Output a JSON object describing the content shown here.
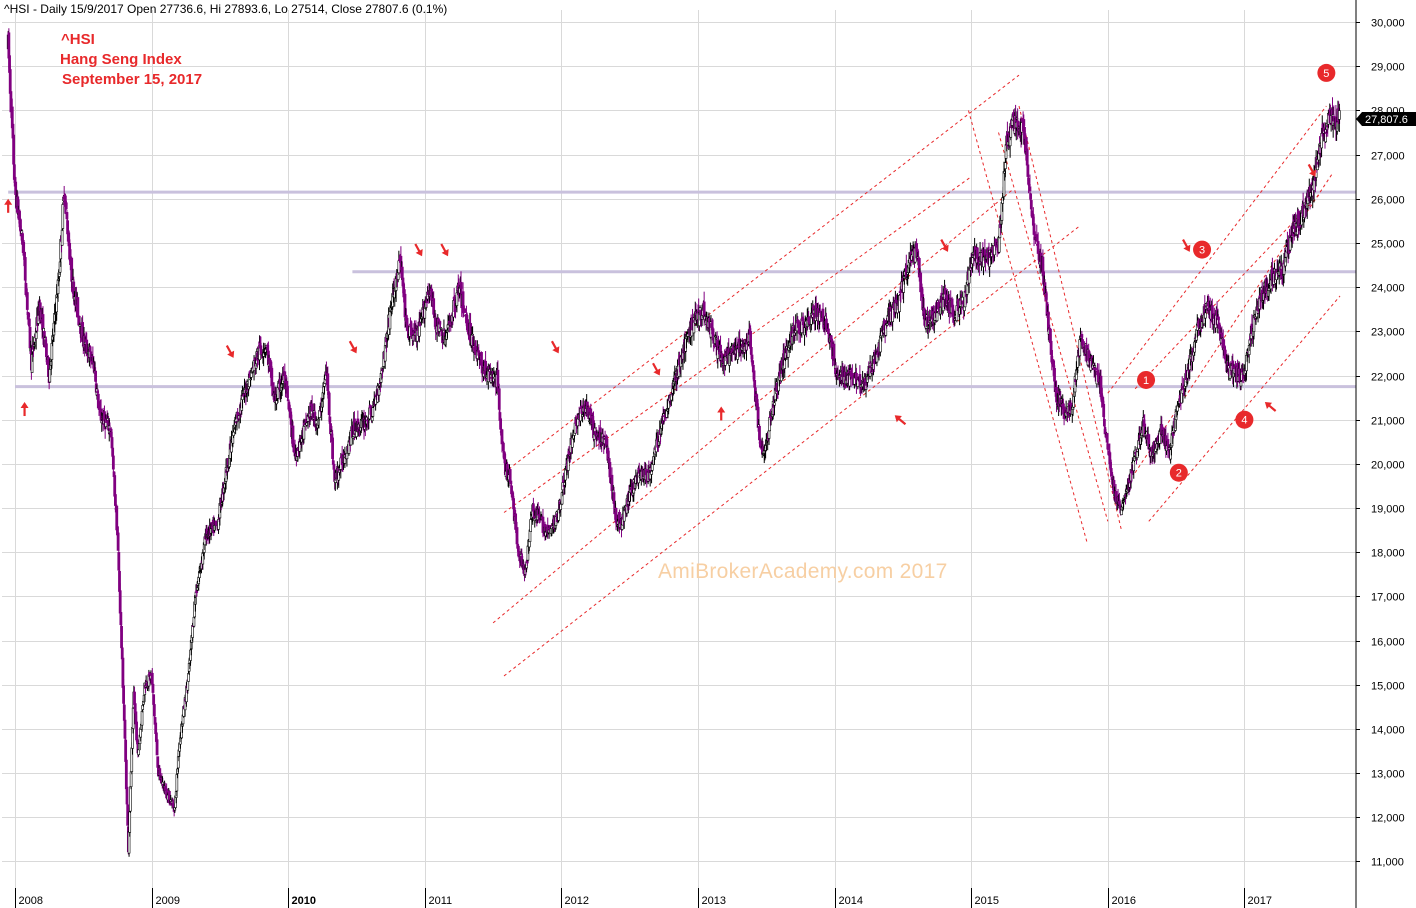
{
  "header": {
    "info_line": "^HSI - Daily 15/9/2017 Open 27736.6, Hi 27893.6, Lo 27514, Close 27807.6 (0.1%)"
  },
  "title_block": {
    "symbol": "^HSI",
    "name": "Hang Seng Index",
    "date": "September 15, 2017"
  },
  "watermark": "AmiBrokerAcademy.com    2017",
  "colors": {
    "candle_purple": "#800080",
    "candle_black": "#000000",
    "annotation_red": "#e8292b",
    "support_line": "#c9c1dd",
    "grid": "#d9d9d9",
    "watermark": "#f7cfa3"
  },
  "chart_data": {
    "type": "candlestick",
    "symbol": "^HSI",
    "periodicity": "Daily",
    "last_bar": {
      "date": "15/9/2017",
      "open": 27736.6,
      "high": 27893.6,
      "low": 27514,
      "close": 27807.6,
      "change": "0.1%"
    },
    "last_close_label": "27,807.6",
    "y_axis": {
      "position": "right",
      "range": [
        10400,
        30500
      ],
      "tick_values": [
        11000,
        12000,
        13000,
        14000,
        15000,
        16000,
        17000,
        18000,
        19000,
        20000,
        21000,
        22000,
        23000,
        24000,
        25000,
        26000,
        27000,
        28000,
        29000,
        30000
      ],
      "tick_labels": [
        "11,000",
        "12,000",
        "13,000",
        "14,000",
        "15,000",
        "16,000",
        "17,000",
        "18,000",
        "19,000",
        "20,000",
        "21,000",
        "22,000",
        "23,000",
        "24,000",
        "25,000",
        "26,000",
        "27,000",
        "28,000",
        "29,000",
        "30,000"
      ]
    },
    "x_axis": {
      "range": [
        2007.95,
        2017.9
      ],
      "years": [
        2008,
        2009,
        2010,
        2011,
        2012,
        2013,
        2014,
        2015,
        2016,
        2017
      ],
      "year_labels": [
        "2008",
        "2009",
        "2010",
        "2011",
        "2012",
        "2013",
        "2014",
        "2015",
        "2016",
        "2017"
      ],
      "bold_labels": [
        "2010"
      ]
    },
    "grid": true,
    "price_path": [
      [
        2007.95,
        29500
      ],
      [
        2008.0,
        26200
      ],
      [
        2008.06,
        24900
      ],
      [
        2008.12,
        22300
      ],
      [
        2008.18,
        23600
      ],
      [
        2008.25,
        22000
      ],
      [
        2008.32,
        24200
      ],
      [
        2008.36,
        26200
      ],
      [
        2008.42,
        24100
      ],
      [
        2008.5,
        22800
      ],
      [
        2008.58,
        22200
      ],
      [
        2008.62,
        21100
      ],
      [
        2008.7,
        20800
      ],
      [
        2008.75,
        18400
      ],
      [
        2008.8,
        14200
      ],
      [
        2008.83,
        11300
      ],
      [
        2008.87,
        14800
      ],
      [
        2008.9,
        13400
      ],
      [
        2008.95,
        15000
      ],
      [
        2009.0,
        15200
      ],
      [
        2009.05,
        13000
      ],
      [
        2009.1,
        12600
      ],
      [
        2009.17,
        12200
      ],
      [
        2009.2,
        13600
      ],
      [
        2009.27,
        15200
      ],
      [
        2009.32,
        17000
      ],
      [
        2009.4,
        18400
      ],
      [
        2009.48,
        18600
      ],
      [
        2009.55,
        19900
      ],
      [
        2009.62,
        21000
      ],
      [
        2009.7,
        21800
      ],
      [
        2009.78,
        22500
      ],
      [
        2009.84,
        22700
      ],
      [
        2009.9,
        21400
      ],
      [
        2009.97,
        22000
      ],
      [
        2010.05,
        20200
      ],
      [
        2010.1,
        20600
      ],
      [
        2010.16,
        21200
      ],
      [
        2010.22,
        20900
      ],
      [
        2010.28,
        22100
      ],
      [
        2010.34,
        19600
      ],
      [
        2010.4,
        20100
      ],
      [
        2010.48,
        20800
      ],
      [
        2010.55,
        20900
      ],
      [
        2010.62,
        21200
      ],
      [
        2010.68,
        22000
      ],
      [
        2010.75,
        23500
      ],
      [
        2010.82,
        24600
      ],
      [
        2010.87,
        23000
      ],
      [
        2010.95,
        22900
      ],
      [
        2011.03,
        24000
      ],
      [
        2011.08,
        23200
      ],
      [
        2011.15,
        22800
      ],
      [
        2011.25,
        24000
      ],
      [
        2011.3,
        23300
      ],
      [
        2011.35,
        22800
      ],
      [
        2011.42,
        22200
      ],
      [
        2011.47,
        22000
      ],
      [
        2011.53,
        21900
      ],
      [
        2011.58,
        20000
      ],
      [
        2011.63,
        19600
      ],
      [
        2011.68,
        18100
      ],
      [
        2011.74,
        17500
      ],
      [
        2011.78,
        19000
      ],
      [
        2011.83,
        18800
      ],
      [
        2011.9,
        18400
      ],
      [
        2011.96,
        18700
      ],
      [
        2012.02,
        19600
      ],
      [
        2012.1,
        20900
      ],
      [
        2012.18,
        21300
      ],
      [
        2012.25,
        20600
      ],
      [
        2012.32,
        20600
      ],
      [
        2012.4,
        18800
      ],
      [
        2012.44,
        18600
      ],
      [
        2012.5,
        19300
      ],
      [
        2012.57,
        19800
      ],
      [
        2012.64,
        19700
      ],
      [
        2012.72,
        20700
      ],
      [
        2012.8,
        21600
      ],
      [
        2012.88,
        22400
      ],
      [
        2012.96,
        23200
      ],
      [
        2013.04,
        23500
      ],
      [
        2013.1,
        23000
      ],
      [
        2013.18,
        22300
      ],
      [
        2013.25,
        22500
      ],
      [
        2013.32,
        22600
      ],
      [
        2013.38,
        22900
      ],
      [
        2013.44,
        20900
      ],
      [
        2013.48,
        20100
      ],
      [
        2013.56,
        21500
      ],
      [
        2013.62,
        22300
      ],
      [
        2013.7,
        23000
      ],
      [
        2013.78,
        23200
      ],
      [
        2013.86,
        23400
      ],
      [
        2013.94,
        23200
      ],
      [
        2014.02,
        22000
      ],
      [
        2014.08,
        21900
      ],
      [
        2014.15,
        22000
      ],
      [
        2014.22,
        21800
      ],
      [
        2014.3,
        22400
      ],
      [
        2014.38,
        23200
      ],
      [
        2014.46,
        23600
      ],
      [
        2014.54,
        24500
      ],
      [
        2014.6,
        24800
      ],
      [
        2014.66,
        23200
      ],
      [
        2014.72,
        23300
      ],
      [
        2014.8,
        23800
      ],
      [
        2014.88,
        23400
      ],
      [
        2014.95,
        23700
      ],
      [
        2015.02,
        24800
      ],
      [
        2015.1,
        24600
      ],
      [
        2015.2,
        24900
      ],
      [
        2015.26,
        27300
      ],
      [
        2015.3,
        27700
      ],
      [
        2015.38,
        27600
      ],
      [
        2015.46,
        25200
      ],
      [
        2015.52,
        24500
      ],
      [
        2015.56,
        23300
      ],
      [
        2015.62,
        21600
      ],
      [
        2015.68,
        21200
      ],
      [
        2015.74,
        21300
      ],
      [
        2015.8,
        22800
      ],
      [
        2015.86,
        22400
      ],
      [
        2015.94,
        21900
      ],
      [
        2016.0,
        20300
      ],
      [
        2016.05,
        19300
      ],
      [
        2016.1,
        18900
      ],
      [
        2016.18,
        19900
      ],
      [
        2016.26,
        20900
      ],
      [
        2016.32,
        20200
      ],
      [
        2016.4,
        20800
      ],
      [
        2016.45,
        20200
      ],
      [
        2016.52,
        21400
      ],
      [
        2016.58,
        22000
      ],
      [
        2016.65,
        23000
      ],
      [
        2016.72,
        23500
      ],
      [
        2016.8,
        23300
      ],
      [
        2016.88,
        22200
      ],
      [
        2016.95,
        22000
      ],
      [
        2017.0,
        22000
      ],
      [
        2017.05,
        23000
      ],
      [
        2017.12,
        23800
      ],
      [
        2017.2,
        24200
      ],
      [
        2017.28,
        24400
      ],
      [
        2017.36,
        25300
      ],
      [
        2017.44,
        25700
      ],
      [
        2017.5,
        26300
      ],
      [
        2017.56,
        27300
      ],
      [
        2017.62,
        27800
      ],
      [
        2017.7,
        27808
      ]
    ],
    "support_lines": [
      {
        "value": 26150,
        "from": 2007.95,
        "to": 2017.9
      },
      {
        "value": 24350,
        "from": 2010.47,
        "to": 2017.9
      },
      {
        "value": 21750,
        "from": 2008.0,
        "to": 2017.9
      }
    ],
    "trend_channels": [
      {
        "from": [
          2011.58,
          19800
        ],
        "to": [
          2015.35,
          28800
        ]
      },
      {
        "from": [
          2011.58,
          18900
        ],
        "to": [
          2015.0,
          26500
        ]
      },
      {
        "from": [
          2011.5,
          16400
        ],
        "to": [
          2015.3,
          26200
        ]
      },
      {
        "from": [
          2011.58,
          15200
        ],
        "to": [
          2015.8,
          25400
        ]
      },
      {
        "from": [
          2014.98,
          28000
        ],
        "to": [
          2015.85,
          18200
        ]
      },
      {
        "from": [
          2015.2,
          27500
        ],
        "to": [
          2016.0,
          18700
        ]
      },
      {
        "from": [
          2015.35,
          28100
        ],
        "to": [
          2016.1,
          18500
        ]
      },
      {
        "from": [
          2016.0,
          21600
        ],
        "to": [
          2017.6,
          28100
        ]
      },
      {
        "from": [
          2016.2,
          19800
        ],
        "to": [
          2017.65,
          26600
        ]
      },
      {
        "from": [
          2016.2,
          21700
        ],
        "to": [
          2017.55,
          26100
        ]
      },
      {
        "from": [
          2016.3,
          18700
        ],
        "to": [
          2017.7,
          23800
        ]
      }
    ],
    "arrows": [
      {
        "x": 2007.95,
        "y": 26000,
        "direction": "up"
      },
      {
        "x": 2008.07,
        "y": 21400,
        "direction": "up"
      },
      {
        "x": 2009.6,
        "y": 22400,
        "direction": "down"
      },
      {
        "x": 2010.5,
        "y": 22500,
        "direction": "down"
      },
      {
        "x": 2010.98,
        "y": 24700,
        "direction": "down"
      },
      {
        "x": 2011.17,
        "y": 24700,
        "direction": "down"
      },
      {
        "x": 2011.98,
        "y": 22500,
        "direction": "down"
      },
      {
        "x": 2012.72,
        "y": 22000,
        "direction": "down"
      },
      {
        "x": 2013.17,
        "y": 21300,
        "direction": "up"
      },
      {
        "x": 2014.44,
        "y": 21100,
        "direction": "up-left"
      },
      {
        "x": 2014.83,
        "y": 24800,
        "direction": "down"
      },
      {
        "x": 2016.6,
        "y": 24800,
        "direction": "down"
      },
      {
        "x": 2017.15,
        "y": 21400,
        "direction": "up-left"
      },
      {
        "x": 2017.52,
        "y": 26500,
        "direction": "down"
      }
    ],
    "wave_labels": [
      {
        "label": "1",
        "x": 2016.28,
        "y": 21900
      },
      {
        "label": "2",
        "x": 2016.52,
        "y": 19800
      },
      {
        "label": "3",
        "x": 2016.69,
        "y": 24850
      },
      {
        "label": "4",
        "x": 2017.0,
        "y": 21000
      },
      {
        "label": "5",
        "x": 2017.6,
        "y": 28850
      }
    ]
  }
}
